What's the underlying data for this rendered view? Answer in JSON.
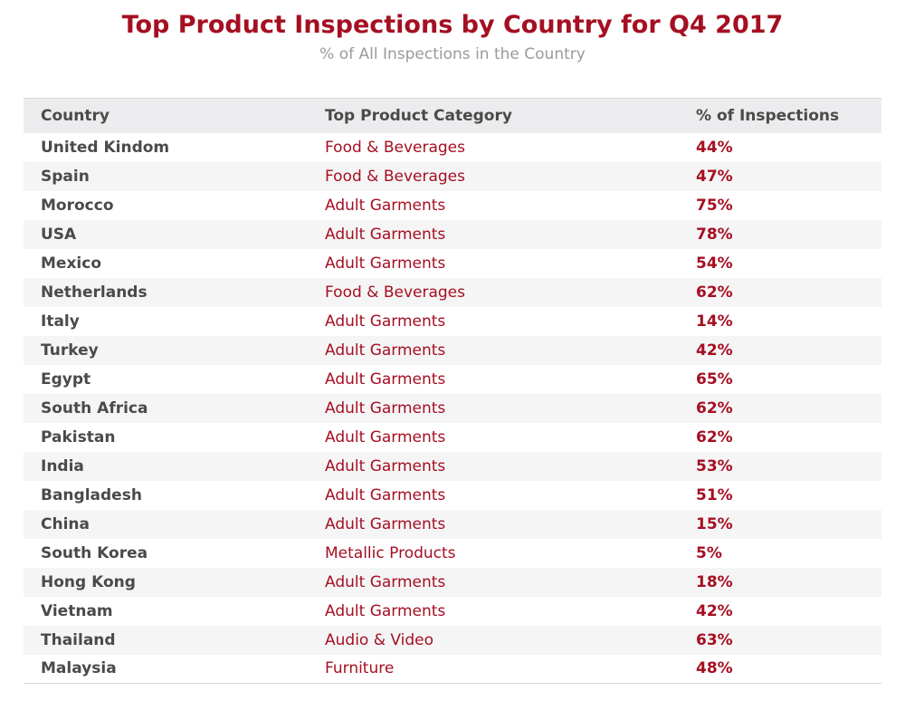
{
  "chart_data": {
    "type": "table",
    "title": "Top Product Inspections by Country for Q4 2017",
    "subtitle": "% of All Inspections in the Country",
    "columns": [
      "Country",
      "Top Product Category",
      "% of Inspections"
    ],
    "rows": [
      {
        "country": "United Kindom",
        "category": "Food & Beverages",
        "pct": "44%"
      },
      {
        "country": "Spain",
        "category": "Food & Beverages",
        "pct": "47%"
      },
      {
        "country": "Morocco",
        "category": "Adult Garments",
        "pct": "75%"
      },
      {
        "country": "USA",
        "category": "Adult Garments",
        "pct": "78%"
      },
      {
        "country": "Mexico",
        "category": "Adult Garments",
        "pct": "54%"
      },
      {
        "country": "Netherlands",
        "category": "Food & Beverages",
        "pct": "62%"
      },
      {
        "country": "Italy",
        "category": "Adult Garments",
        "pct": "14%"
      },
      {
        "country": "Turkey",
        "category": "Adult Garments",
        "pct": "42%"
      },
      {
        "country": "Egypt",
        "category": "Adult Garments",
        "pct": "65%"
      },
      {
        "country": "South Africa",
        "category": "Adult Garments",
        "pct": "62%"
      },
      {
        "country": "Pakistan",
        "category": "Adult Garments",
        "pct": "62%"
      },
      {
        "country": "India",
        "category": "Adult Garments",
        "pct": "53%"
      },
      {
        "country": "Bangladesh",
        "category": "Adult Garments",
        "pct": "51%"
      },
      {
        "country": "China",
        "category": "Adult Garments",
        "pct": "15%"
      },
      {
        "country": "South Korea",
        "category": "Metallic Products",
        "pct": "5%"
      },
      {
        "country": "Hong Kong",
        "category": "Adult Garments",
        "pct": "18%"
      },
      {
        "country": "Vietnam",
        "category": "Adult Garments",
        "pct": "42%"
      },
      {
        "country": "Thailand",
        "category": "Audio & Video",
        "pct": "63%"
      },
      {
        "country": "Malaysia",
        "category": "Furniture",
        "pct": "48%"
      }
    ]
  }
}
